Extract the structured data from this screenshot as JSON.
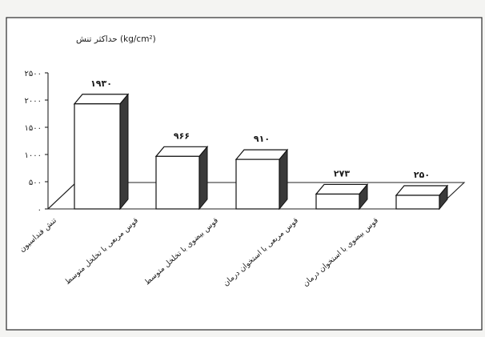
{
  "chart_data": {
    "type": "bar",
    "categories": [
      "تنش فنداسیون",
      "قوس مربعی با تخلخل متوسط",
      "قوس بیضوی با تخلخل متوسط",
      "قوس مربعی با استخوان درمان",
      "قوس بیضوی با استخوان درمان"
    ],
    "values": [
      1930,
      966,
      910,
      273,
      250
    ],
    "data_labels": [
      "۱۹۳۰",
      "۹۶۶",
      "۹۱۰",
      "۲۷۳",
      "۲۵۰"
    ],
    "yticks": [
      0,
      500,
      1000,
      1500,
      2000,
      2500
    ],
    "ytick_labels": [
      "۰",
      "۵۰۰",
      "۱۰۰۰",
      "۱۵۰۰",
      "۲۰۰۰",
      "۲۵۰۰"
    ],
    "ylim": [
      0,
      2500
    ],
    "ylabel": "حداکثر تنش (kg/cm²)",
    "style": "3d-column",
    "grid": false,
    "legend": "none"
  }
}
